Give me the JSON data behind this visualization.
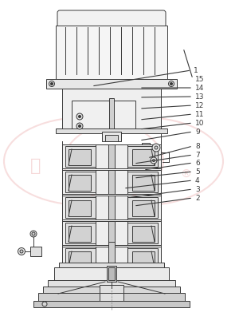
{
  "bg_color": "#ffffff",
  "line_color": "#3a3a3a",
  "watermark_color": "#f2c4c4",
  "wm_alpha": 0.55,
  "lw": 0.7,
  "fig_w": 3.0,
  "fig_h": 4.21,
  "dpi": 100,
  "labels_data": [
    [
      "1",
      115,
      108,
      240,
      88
    ],
    [
      "2",
      168,
      258,
      242,
      248
    ],
    [
      "3",
      160,
      248,
      242,
      237
    ],
    [
      "4",
      155,
      236,
      242,
      226
    ],
    [
      "5",
      168,
      223,
      242,
      215
    ],
    [
      "6",
      180,
      213,
      242,
      204
    ],
    [
      "7",
      168,
      205,
      242,
      194
    ],
    [
      "8",
      185,
      198,
      242,
      183
    ],
    [
      "9",
      175,
      176,
      242,
      165
    ],
    [
      "10",
      175,
      162,
      242,
      154
    ],
    [
      "11",
      175,
      150,
      242,
      143
    ],
    [
      "12",
      175,
      136,
      242,
      132
    ],
    [
      "13",
      175,
      122,
      242,
      121
    ],
    [
      "14",
      175,
      110,
      242,
      110
    ],
    [
      "15",
      230,
      60,
      242,
      99
    ]
  ]
}
